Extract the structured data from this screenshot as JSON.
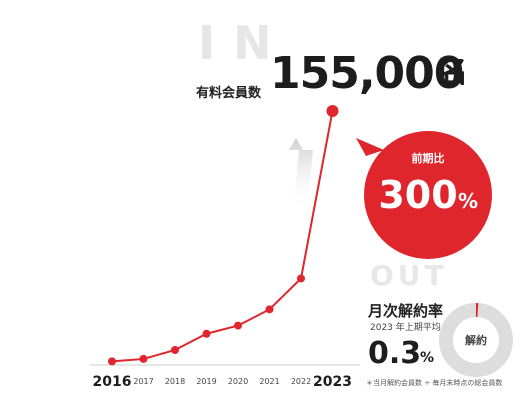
{
  "header": {
    "in_label": "IN",
    "members_label": "有料会員数",
    "members_value": "155,000",
    "members_unit": "名"
  },
  "callout": {
    "label": "前期比",
    "value": "300",
    "unit": "%"
  },
  "churn": {
    "out_label": "OUT",
    "title": "月次解約率",
    "subtitle": "2023 年上期平均",
    "value": "0.3",
    "unit": "%",
    "donut_label": "解約",
    "note": "＊当月解約会員数 ÷ 毎月末時点の総会員数",
    "rate_percent": 0.3
  },
  "colors": {
    "accent": "#e0262d",
    "line": "#e0262d",
    "marker": "#e0262d",
    "axis": "#cccccc",
    "donut_ring": "#dddddd"
  },
  "chart_data": {
    "type": "line",
    "categories": [
      "2016",
      "2017",
      "2018",
      "2019",
      "2020",
      "2021",
      "2022",
      "2023"
    ],
    "series": [
      {
        "values": [
          1000,
          2500,
          8000,
          18000,
          23000,
          33000,
          52000,
          155000
        ]
      }
    ],
    "ylim": [
      0,
      160000
    ],
    "grid": false,
    "legend": "none"
  }
}
